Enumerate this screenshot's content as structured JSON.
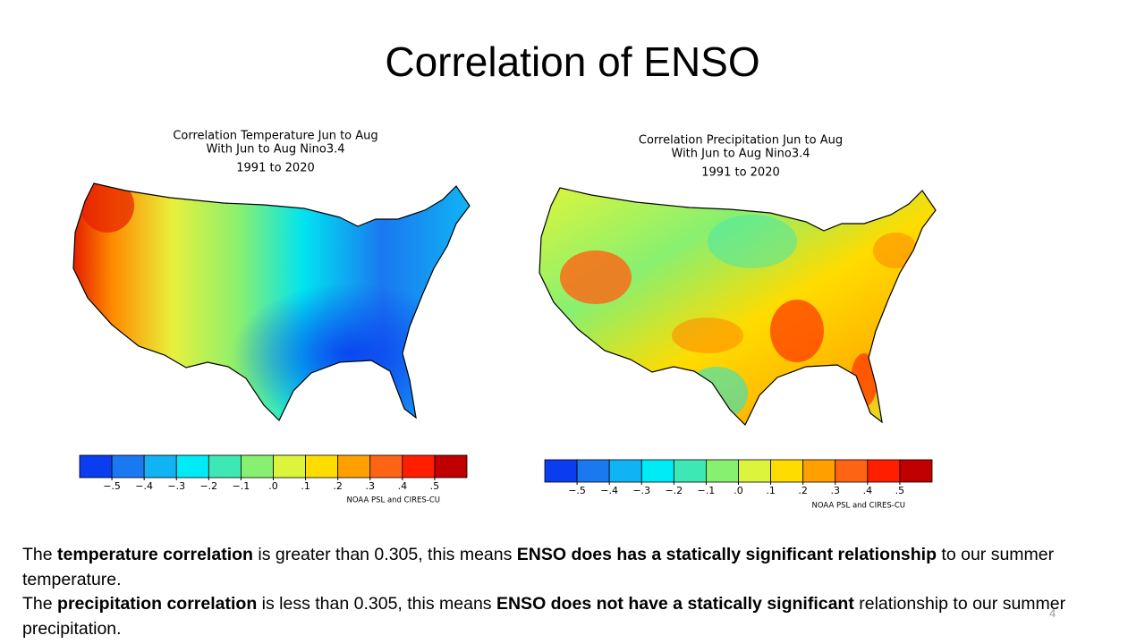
{
  "title": "Correlation of ENSO",
  "maps": [
    {
      "title_lines": [
        "Correlation Temperature Jun to Aug",
        "With Jun to Aug Nino3.4",
        "1991 to 2020"
      ],
      "colorbar": {
        "colors": [
          "#0a3cf0",
          "#1a78f0",
          "#10b4f5",
          "#00ebf5",
          "#3ee8b4",
          "#88f070",
          "#dcf53c",
          "#ffdc00",
          "#ffa000",
          "#ff6414",
          "#ff1e00",
          "#c00000"
        ],
        "labels": [
          "−.5",
          "−.4",
          "−.3",
          "−.2",
          "−.1",
          ".0",
          ".1",
          ".2",
          ".3",
          ".4",
          ".5"
        ]
      },
      "credit": "NOAA PSL and CIRES-CU"
    },
    {
      "title_lines": [
        "Correlation Precipitation Jun to Aug",
        "With Jun to Aug Nino3.4",
        "1991 to 2020"
      ],
      "colorbar": {
        "colors": [
          "#0a3cf0",
          "#1a78f0",
          "#10b4f5",
          "#00ebf5",
          "#3ee8b4",
          "#88f070",
          "#dcf53c",
          "#ffdc00",
          "#ffa000",
          "#ff6414",
          "#ff1e00",
          "#c00000"
        ],
        "labels": [
          "−.5",
          "−.4",
          "−.3",
          "−.2",
          "−.1",
          ".0",
          ".1",
          ".2",
          ".3",
          ".4",
          ".5"
        ]
      },
      "credit": "NOAA PSL and CIRES-CU"
    }
  ],
  "paragraphs": [
    [
      {
        "text": "The ",
        "bold": false
      },
      {
        "text": "temperature correlation",
        "bold": true
      },
      {
        "text": " is greater than 0.305, this means ",
        "bold": false
      },
      {
        "text": "ENSO does has a statically significant relationship",
        "bold": true
      },
      {
        "text": " to our summer temperature.",
        "bold": false
      }
    ],
    [
      {
        "text": "The ",
        "bold": false
      },
      {
        "text": "precipitation correlation",
        "bold": true
      },
      {
        "text": " is less than 0.305, this means ",
        "bold": false
      },
      {
        "text": "ENSO does not have a statically significant",
        "bold": true
      },
      {
        "text": " relationship to our summer precipitation.",
        "bold": false
      }
    ]
  ],
  "page_number": "4"
}
